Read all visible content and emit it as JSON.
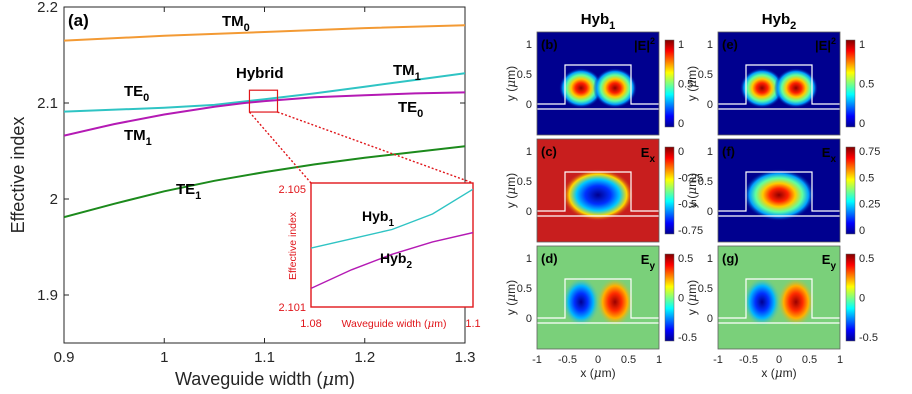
{
  "colors": {
    "TM0": "#f39a34",
    "TE0_TM1_hybrid": "#2fc4c4",
    "TM1_TE0_hybrid": "#b41ab4",
    "TE1": "#1c8a1c",
    "inset": "#e0161b",
    "waveguide_outline": "#ffffff"
  },
  "chart_data": [
    {
      "type": "line",
      "panel_label": "(a)",
      "xlabel_main": "Waveguide width (",
      "xlabel_mu": "μ",
      "xlabel_tail": "m)",
      "ylabel": "Effective index",
      "xlim": [
        0.9,
        1.3
      ],
      "ylim": [
        1.85,
        2.2
      ],
      "x_ticks": [
        "0.9",
        "1",
        "1.1",
        "1.2",
        "1.3"
      ],
      "y_ticks": [
        "1.9",
        "2",
        "2.1",
        "2.2"
      ],
      "series": [
        {
          "name": "TM0",
          "x": [
            0.9,
            1.0,
            1.1,
            1.2,
            1.3
          ],
          "y": [
            2.165,
            2.17,
            2.174,
            2.178,
            2.181
          ]
        },
        {
          "name": "TE0/TM1",
          "x": [
            0.9,
            1.0,
            1.05,
            1.1,
            1.15,
            1.2,
            1.25,
            1.3
          ],
          "y": [
            2.091,
            2.095,
            2.098,
            2.104,
            2.11,
            2.117,
            2.124,
            2.131
          ]
        },
        {
          "name": "TM1/TE0",
          "x": [
            0.9,
            0.95,
            1.0,
            1.05,
            1.08,
            1.1,
            1.15,
            1.2,
            1.25,
            1.3
          ],
          "y": [
            2.066,
            2.078,
            2.088,
            2.096,
            2.1,
            2.102,
            2.106,
            2.108,
            2.11,
            2.111
          ]
        },
        {
          "name": "TE1",
          "x": [
            0.9,
            0.95,
            1.0,
            1.05,
            1.1,
            1.15,
            1.2,
            1.25,
            1.3
          ],
          "y": [
            1.981,
            1.995,
            2.008,
            2.019,
            2.028,
            2.036,
            2.043,
            2.049,
            2.055
          ]
        }
      ],
      "annotations": {
        "TM0": {
          "base": "TM",
          "sub": "0"
        },
        "TE0_left": {
          "base": "TE",
          "sub": "0"
        },
        "TM1_left": {
          "base": "TM",
          "sub": "1"
        },
        "TM1_right": {
          "base": "TM",
          "sub": "1"
        },
        "TE0_right": {
          "base": "TE",
          "sub": "0"
        },
        "TE1": {
          "base": "TE",
          "sub": "1"
        },
        "hybrid": "Hybrid"
      },
      "highlight_box": {
        "x": [
          1.08,
          1.1
        ],
        "y": [
          2.101,
          2.105
        ]
      }
    },
    {
      "type": "line",
      "role": "inset",
      "xlim": [
        1.08,
        1.1
      ],
      "ylim": [
        2.101,
        2.105
      ],
      "x_ticks": [
        "1.08",
        "1.1"
      ],
      "y_ticks": [
        "2.105",
        "2.101"
      ],
      "xlabel_main": "Waveguide width (",
      "xlabel_mu": "μ",
      "xlabel_tail": "m)",
      "ylabel": "Effective index",
      "series": [
        {
          "name": "Hyb1",
          "label_base": "Hyb",
          "label_sub": "1",
          "x": [
            1.08,
            1.085,
            1.09,
            1.095,
            1.1
          ],
          "y": [
            2.1029,
            2.1032,
            2.1035,
            2.104,
            2.1048
          ]
        },
        {
          "name": "Hyb2",
          "label_base": "Hyb",
          "label_sub": "2",
          "x": [
            1.08,
            1.085,
            1.09,
            1.095,
            1.1
          ],
          "y": [
            2.1016,
            2.1022,
            2.1027,
            2.1031,
            2.1034
          ]
        }
      ]
    },
    {
      "type": "heatmap",
      "role": "field-maps",
      "columns": [
        {
          "title_base": "Hyb",
          "title_sub": "1"
        },
        {
          "title_base": "Hyb",
          "title_sub": "2"
        }
      ],
      "x_ticks": [
        "-1",
        "-0.5",
        "0",
        "0.5",
        "1"
      ],
      "y_ticks": [
        "1",
        "0.5",
        "0"
      ],
      "xlabel_main": "x (",
      "xlabel_mu": "μ",
      "xlabel_tail": "m)",
      "ylabel_main": "y (",
      "ylabel_mu": "μ",
      "ylabel_tail": "m)",
      "panels": [
        {
          "label": "(b)",
          "field": "|E|",
          "sup": "2",
          "sub": "",
          "cbar": [
            "1",
            "0.5",
            "0"
          ],
          "bg": "#00008f",
          "mode": "two-hot"
        },
        {
          "label": "(c)",
          "field": "E",
          "sup": "",
          "sub": "x",
          "cbar": [
            "0",
            "-0.25",
            "-0.5",
            "-0.75"
          ],
          "bg": "#c81e1e",
          "mode": "single-cold"
        },
        {
          "label": "(d)",
          "field": "E",
          "sup": "",
          "sub": "y",
          "cbar": [
            "0.5",
            "0",
            "-0.5"
          ],
          "bg": "#7ad07a",
          "mode": "dipole"
        },
        {
          "label": "(e)",
          "field": "|E|",
          "sup": "2",
          "sub": "",
          "cbar": [
            "1",
            "0.5",
            "0"
          ],
          "bg": "#00008f",
          "mode": "two-hot"
        },
        {
          "label": "(f)",
          "field": "E",
          "sup": "",
          "sub": "x",
          "cbar": [
            "0.75",
            "0.5",
            "0.25",
            "0"
          ],
          "bg": "#00008f",
          "mode": "single-hot"
        },
        {
          "label": "(g)",
          "field": "E",
          "sup": "",
          "sub": "y",
          "cbar": [
            "0.5",
            "0",
            "-0.5"
          ],
          "bg": "#7ad07a",
          "mode": "dipole"
        }
      ]
    }
  ]
}
